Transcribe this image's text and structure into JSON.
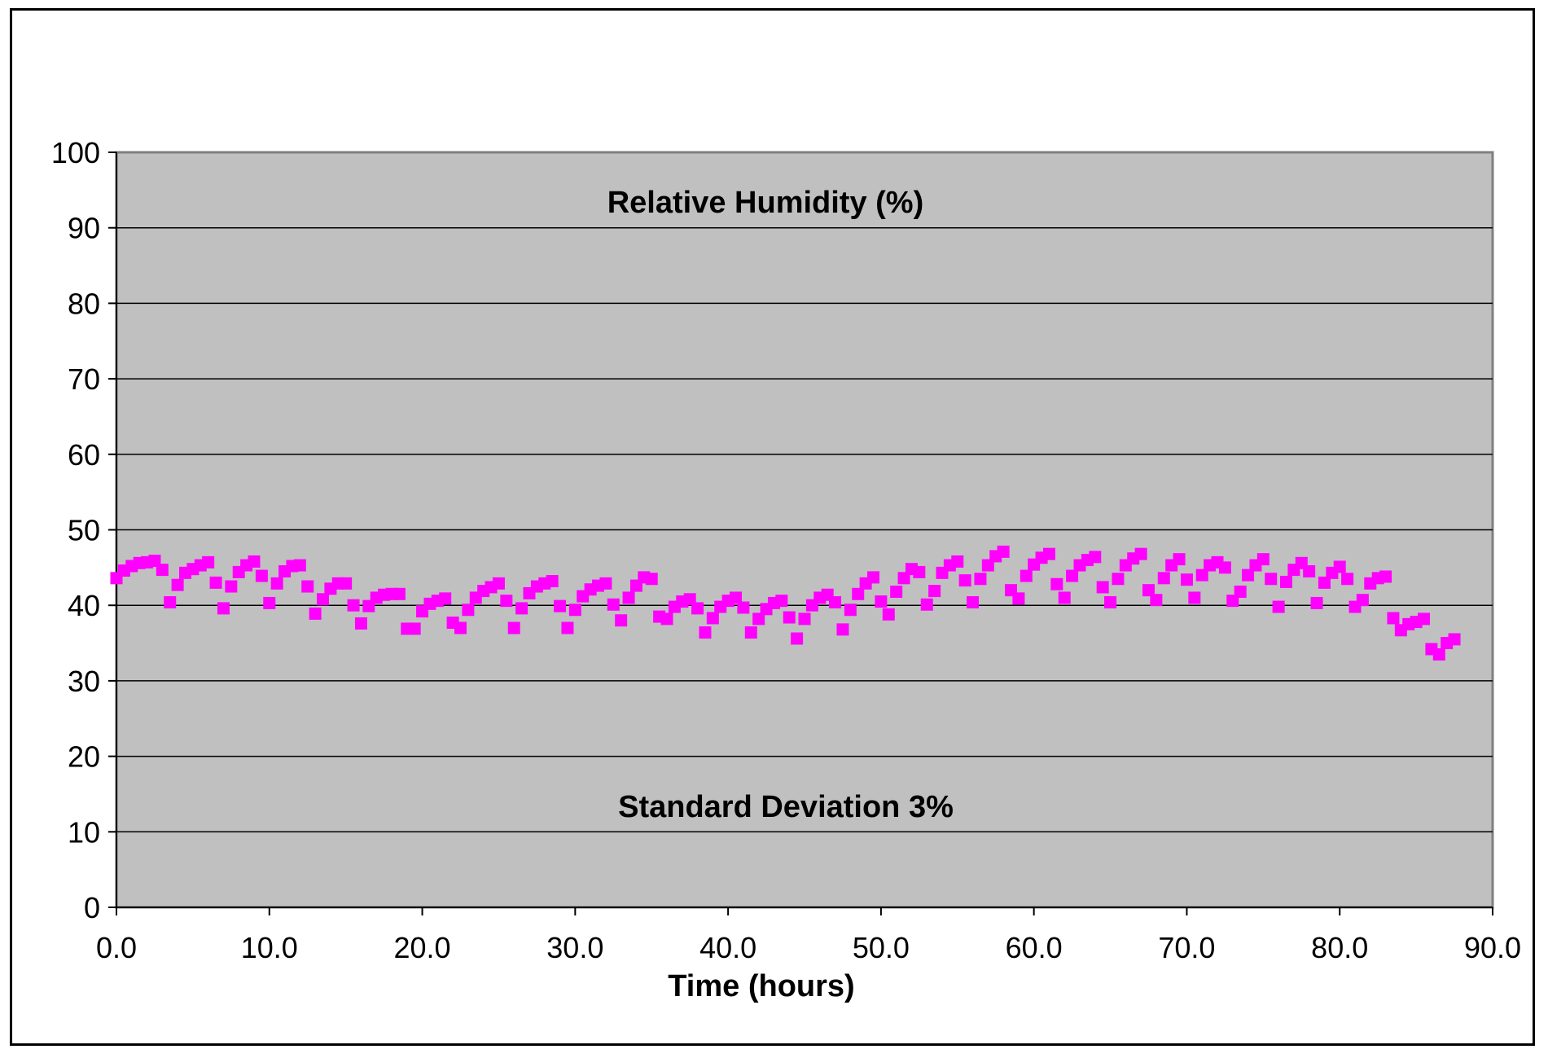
{
  "chart_data": {
    "type": "scatter",
    "xlabel": "Time (hours)",
    "ylabel": "",
    "xlim": [
      0,
      90
    ],
    "ylim": [
      0,
      100
    ],
    "x_ticks": [
      "0.0",
      "10.0",
      "20.0",
      "30.0",
      "40.0",
      "50.0",
      "60.0",
      "70.0",
      "80.0",
      "90.0"
    ],
    "y_ticks": [
      "0",
      "10",
      "20",
      "30",
      "40",
      "50",
      "60",
      "70",
      "80",
      "90",
      "100"
    ],
    "grid": "horizontal",
    "legend": "none",
    "annotations": {
      "top": "Relative Humidity (%)",
      "bottom": "Standard Deviation 3%"
    },
    "colors": {
      "plot_background": "#c0c0c0",
      "marker": "#ff00ff",
      "gridline": "#000000"
    },
    "series": [
      {
        "name": "Relative Humidity",
        "points": [
          [
            0.0,
            43.6
          ],
          [
            0.5,
            44.6
          ],
          [
            1.0,
            45.2
          ],
          [
            1.5,
            45.6
          ],
          [
            2.0,
            45.7
          ],
          [
            2.5,
            45.9
          ],
          [
            3.0,
            44.7
          ],
          [
            3.5,
            40.4
          ],
          [
            4.0,
            42.7
          ],
          [
            4.5,
            44.3
          ],
          [
            5.0,
            44.8
          ],
          [
            5.5,
            45.3
          ],
          [
            6.0,
            45.7
          ],
          [
            6.5,
            43.0
          ],
          [
            7.0,
            39.6
          ],
          [
            7.5,
            42.5
          ],
          [
            8.0,
            44.4
          ],
          [
            8.5,
            45.3
          ],
          [
            9.0,
            45.8
          ],
          [
            9.5,
            43.9
          ],
          [
            10.0,
            40.3
          ],
          [
            10.5,
            42.9
          ],
          [
            11.0,
            44.5
          ],
          [
            11.5,
            45.2
          ],
          [
            12.0,
            45.3
          ],
          [
            12.5,
            42.5
          ],
          [
            13.0,
            38.9
          ],
          [
            13.5,
            40.8
          ],
          [
            14.0,
            42.2
          ],
          [
            14.5,
            42.9
          ],
          [
            15.0,
            42.9
          ],
          [
            15.5,
            40.0
          ],
          [
            16.0,
            37.6
          ],
          [
            16.5,
            39.9
          ],
          [
            17.0,
            41.0
          ],
          [
            17.5,
            41.4
          ],
          [
            18.0,
            41.5
          ],
          [
            18.5,
            41.5
          ],
          [
            19.0,
            36.9
          ],
          [
            19.5,
            36.9
          ],
          [
            20.0,
            39.2
          ],
          [
            20.5,
            40.2
          ],
          [
            21.0,
            40.6
          ],
          [
            21.5,
            40.9
          ],
          [
            22.0,
            37.7
          ],
          [
            22.5,
            37.0
          ],
          [
            23.0,
            39.4
          ],
          [
            23.5,
            41.0
          ],
          [
            24.0,
            41.9
          ],
          [
            24.5,
            42.4
          ],
          [
            25.0,
            42.9
          ],
          [
            25.5,
            40.6
          ],
          [
            26.0,
            37.0
          ],
          [
            26.5,
            39.6
          ],
          [
            27.0,
            41.6
          ],
          [
            27.5,
            42.5
          ],
          [
            28.0,
            42.9
          ],
          [
            28.5,
            43.2
          ],
          [
            29.0,
            39.9
          ],
          [
            29.5,
            37.0
          ],
          [
            30.0,
            39.4
          ],
          [
            30.5,
            41.2
          ],
          [
            31.0,
            42.1
          ],
          [
            31.5,
            42.6
          ],
          [
            32.0,
            42.9
          ],
          [
            32.5,
            40.1
          ],
          [
            33.0,
            38.0
          ],
          [
            33.5,
            41.0
          ],
          [
            34.0,
            42.6
          ],
          [
            34.5,
            43.7
          ],
          [
            35.0,
            43.5
          ],
          [
            35.5,
            38.5
          ],
          [
            36.0,
            38.2
          ],
          [
            36.5,
            39.8
          ],
          [
            37.0,
            40.5
          ],
          [
            37.5,
            40.8
          ],
          [
            38.0,
            39.6
          ],
          [
            38.5,
            36.4
          ],
          [
            39.0,
            38.3
          ],
          [
            39.5,
            39.8
          ],
          [
            40.0,
            40.6
          ],
          [
            40.5,
            41.0
          ],
          [
            41.0,
            39.7
          ],
          [
            41.5,
            36.4
          ],
          [
            42.0,
            38.2
          ],
          [
            42.5,
            39.5
          ],
          [
            43.0,
            40.3
          ],
          [
            43.5,
            40.6
          ],
          [
            44.0,
            38.4
          ],
          [
            44.5,
            35.6
          ],
          [
            45.0,
            38.2
          ],
          [
            45.5,
            40.0
          ],
          [
            46.0,
            41.0
          ],
          [
            46.5,
            41.4
          ],
          [
            47.0,
            40.4
          ],
          [
            47.5,
            36.8
          ],
          [
            48.0,
            39.4
          ],
          [
            48.5,
            41.5
          ],
          [
            49.0,
            42.9
          ],
          [
            49.5,
            43.7
          ],
          [
            50.0,
            40.5
          ],
          [
            50.5,
            38.8
          ],
          [
            51.0,
            41.8
          ],
          [
            51.5,
            43.6
          ],
          [
            52.0,
            44.8
          ],
          [
            52.5,
            44.4
          ],
          [
            53.0,
            40.1
          ],
          [
            53.5,
            41.9
          ],
          [
            54.0,
            44.3
          ],
          [
            54.5,
            45.3
          ],
          [
            55.0,
            45.8
          ],
          [
            55.5,
            43.3
          ],
          [
            56.0,
            40.4
          ],
          [
            56.5,
            43.5
          ],
          [
            57.0,
            45.3
          ],
          [
            57.5,
            46.5
          ],
          [
            58.0,
            47.1
          ],
          [
            58.5,
            42.0
          ],
          [
            59.0,
            40.9
          ],
          [
            59.5,
            43.9
          ],
          [
            60.0,
            45.4
          ],
          [
            60.5,
            46.3
          ],
          [
            61.0,
            46.8
          ],
          [
            61.5,
            42.8
          ],
          [
            62.0,
            41.0
          ],
          [
            62.5,
            43.9
          ],
          [
            63.0,
            45.3
          ],
          [
            63.5,
            46.0
          ],
          [
            64.0,
            46.4
          ],
          [
            64.5,
            42.4
          ],
          [
            65.0,
            40.4
          ],
          [
            65.5,
            43.5
          ],
          [
            66.0,
            45.3
          ],
          [
            66.5,
            46.2
          ],
          [
            67.0,
            46.8
          ],
          [
            67.5,
            42.0
          ],
          [
            68.0,
            40.7
          ],
          [
            68.5,
            43.6
          ],
          [
            69.0,
            45.3
          ],
          [
            69.5,
            46.1
          ],
          [
            70.0,
            43.4
          ],
          [
            70.5,
            41.0
          ],
          [
            71.0,
            44.0
          ],
          [
            71.5,
            45.3
          ],
          [
            72.0,
            45.7
          ],
          [
            72.5,
            45.0
          ],
          [
            73.0,
            40.6
          ],
          [
            73.5,
            41.8
          ],
          [
            74.0,
            44.0
          ],
          [
            74.5,
            45.3
          ],
          [
            75.0,
            46.1
          ],
          [
            75.5,
            43.5
          ],
          [
            76.0,
            39.8
          ],
          [
            76.5,
            43.1
          ],
          [
            77.0,
            44.7
          ],
          [
            77.5,
            45.6
          ],
          [
            78.0,
            44.5
          ],
          [
            78.5,
            40.3
          ],
          [
            79.0,
            43.0
          ],
          [
            79.5,
            44.3
          ],
          [
            80.0,
            45.1
          ],
          [
            80.5,
            43.5
          ],
          [
            81.0,
            39.8
          ],
          [
            81.5,
            40.7
          ],
          [
            82.0,
            42.9
          ],
          [
            82.5,
            43.6
          ],
          [
            83.0,
            43.8
          ],
          [
            83.5,
            38.3
          ],
          [
            84.0,
            36.7
          ],
          [
            84.5,
            37.5
          ],
          [
            85.0,
            37.8
          ],
          [
            85.5,
            38.2
          ],
          [
            86.0,
            34.2
          ],
          [
            86.5,
            33.5
          ],
          [
            87.0,
            35.0
          ],
          [
            87.5,
            35.5
          ]
        ]
      }
    ]
  }
}
